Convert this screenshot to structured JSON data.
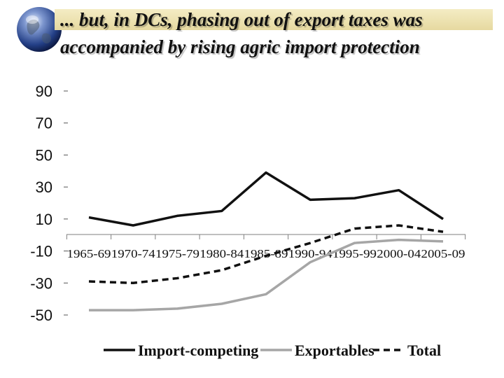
{
  "slide": {
    "title_line1": "... but, in DCs, phasing out of export taxes was",
    "title_line2": "accompanied by rising agric import protection",
    "icon": "globe-icon"
  },
  "chart_data": {
    "type": "line",
    "title": "",
    "xlabel": "",
    "ylabel": "",
    "categories": [
      "1965-69",
      "1970-74",
      "1975-79",
      "1980-84",
      "1985-89",
      "1990-94",
      "1995-99",
      "2000-04",
      "2005-09"
    ],
    "y_ticks": [
      90,
      70,
      50,
      30,
      10,
      -10,
      -30,
      -50
    ],
    "ylim": [
      -50,
      90
    ],
    "grid": false,
    "legend_position": "bottom",
    "series": [
      {
        "name": "Import-competing",
        "values": [
          11,
          6,
          12,
          15,
          39,
          22,
          23,
          28,
          10
        ],
        "color": "#111111",
        "style": "solid"
      },
      {
        "name": "Exportables",
        "values": [
          -47,
          -47,
          -46,
          -43,
          -37,
          -17,
          -5,
          -3,
          -4
        ],
        "color": "#a6a6a6",
        "style": "solid"
      },
      {
        "name": "Total",
        "values": [
          -29,
          -30,
          -27,
          -22,
          -13,
          -5,
          4,
          6,
          2
        ],
        "color": "#111111",
        "style": "dashed"
      }
    ]
  }
}
